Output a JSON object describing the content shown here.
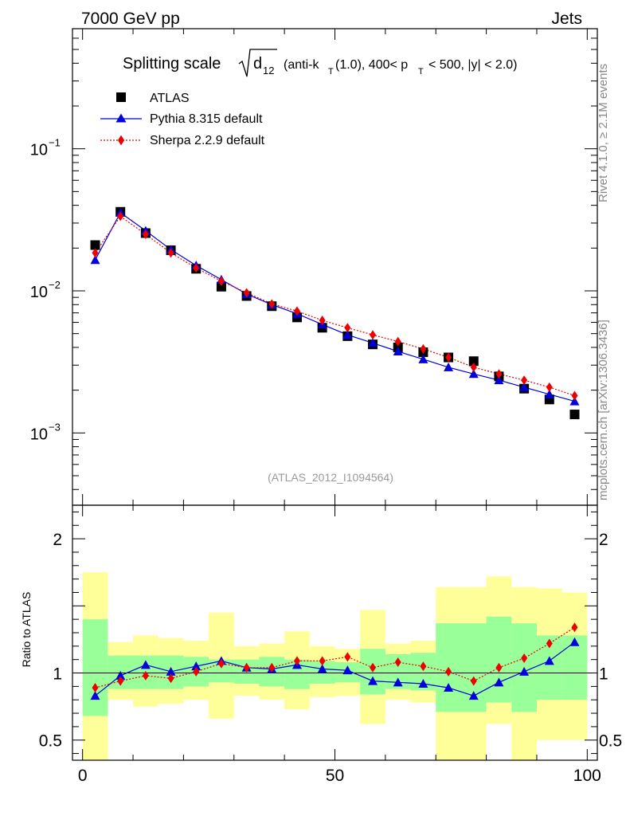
{
  "header": {
    "left": "7000 GeV pp",
    "right": "Jets"
  },
  "side_text": {
    "rivet": "Rivet 4.1.0, ≥ 2.1M events",
    "mcplots": "mcplots.cern.ch [arXiv:1306.3436]"
  },
  "title": {
    "prefix": "Splitting scale",
    "sqrt_arg": "d",
    "sqrt_sub": "12",
    "part1": "(anti-k",
    "sub_t1": "T",
    "part2": "(1.0), 400< p",
    "sub_t2": "T",
    "part3": "< 500, |y| < 2.0)"
  },
  "legend": {
    "atlas": "ATLAS",
    "pythia": "Pythia 8.315 default",
    "sherpa": "Sherpa 2.2.9 default"
  },
  "watermark": "(ATLAS_2012_I1094564)",
  "colors": {
    "data": "#000000",
    "pythia": "#0000dd",
    "sherpa": "#ee0000",
    "band_inner": "#99ff99",
    "band_outer": "#ffff99"
  },
  "chart_data": {
    "type": "line",
    "x": [
      2.5,
      7.5,
      12.5,
      17.5,
      22.5,
      27.5,
      32.5,
      37.5,
      42.5,
      47.5,
      52.5,
      57.5,
      62.5,
      67.5,
      72.5,
      77.5,
      82.5,
      87.5,
      92.5,
      97.5
    ],
    "xlim": [
      -2,
      102
    ],
    "xticks": [
      0,
      50,
      100
    ],
    "main": {
      "yscale": "log",
      "ylim": [
        0.00031,
        0.7
      ],
      "ytick_labels": [
        {
          "value": 0.1,
          "base": "10",
          "exp": "−1"
        },
        {
          "value": 0.01,
          "base": "10",
          "exp": "−2"
        },
        {
          "value": 0.001,
          "base": "10",
          "exp": "−3"
        }
      ],
      "series": [
        {
          "name": "ATLAS",
          "marker": "square",
          "values": [
            0.021,
            0.036,
            0.0255,
            0.0193,
            0.0143,
            0.0107,
            0.0092,
            0.0078,
            0.0065,
            0.0055,
            0.0048,
            0.0042,
            0.004,
            0.0037,
            0.0034,
            0.0032,
            0.0025,
            0.00205,
            0.00172,
            0.00135
          ]
        },
        {
          "name": "Pythia 8.315 default",
          "marker": "triangle",
          "values": [
            0.0165,
            0.0355,
            0.0265,
            0.0195,
            0.0151,
            0.012,
            0.0095,
            0.008,
            0.0069,
            0.0058,
            0.0049,
            0.0043,
            0.00375,
            0.0033,
            0.0029,
            0.0026,
            0.00235,
            0.0021,
            0.00187,
            0.00167
          ]
        },
        {
          "name": "Sherpa 2.2.9 default",
          "marker": "diamond",
          "values": [
            0.0185,
            0.0335,
            0.025,
            0.0185,
            0.0145,
            0.0117,
            0.0097,
            0.0081,
            0.0072,
            0.0062,
            0.0055,
            0.0049,
            0.0044,
            0.0039,
            0.0034,
            0.0029,
            0.0026,
            0.00235,
            0.0021,
            0.00183
          ]
        }
      ]
    },
    "ratio": {
      "ylabel": "Ratio to ATLAS",
      "ylim": [
        0.35,
        2.25
      ],
      "yticks": [
        0.5,
        1,
        2
      ],
      "ytick_labels": [
        "0.5",
        "1",
        "2"
      ],
      "band_inner": {
        "lo": [
          0.68,
          0.88,
          0.88,
          0.88,
          0.9,
          0.93,
          0.92,
          0.9,
          0.88,
          0.92,
          0.93,
          0.84,
          0.88,
          0.87,
          0.71,
          0.71,
          0.78,
          0.71,
          0.8,
          0.8
        ],
        "hi": [
          1.4,
          1.13,
          1.13,
          1.13,
          1.12,
          1.1,
          1.1,
          1.12,
          1.1,
          1.09,
          1.08,
          1.18,
          1.14,
          1.15,
          1.37,
          1.37,
          1.42,
          1.37,
          1.28,
          1.28
        ]
      },
      "band_outer": {
        "lo": [
          0.35,
          0.8,
          0.75,
          0.77,
          0.8,
          0.66,
          0.83,
          0.8,
          0.73,
          0.82,
          0.83,
          0.62,
          0.8,
          0.78,
          0.35,
          0.35,
          0.62,
          0.35,
          0.5,
          0.5
        ],
        "hi": [
          1.75,
          1.23,
          1.28,
          1.26,
          1.24,
          1.45,
          1.2,
          1.22,
          1.31,
          1.2,
          1.18,
          1.47,
          1.22,
          1.24,
          1.64,
          1.64,
          1.72,
          1.64,
          1.63,
          1.6
        ]
      },
      "series": [
        {
          "name": "Pythia 8.315 default",
          "marker": "triangle",
          "values": [
            0.83,
            0.98,
            1.06,
            1.01,
            1.05,
            1.09,
            1.04,
            1.03,
            1.06,
            1.03,
            1.02,
            0.94,
            0.93,
            0.92,
            0.89,
            0.83,
            0.93,
            1.01,
            1.09,
            1.23
          ]
        },
        {
          "name": "Sherpa 2.2.9 default",
          "marker": "diamond",
          "values": [
            0.89,
            0.94,
            0.98,
            0.96,
            1.01,
            1.07,
            1.04,
            1.04,
            1.09,
            1.09,
            1.12,
            1.04,
            1.08,
            1.05,
            1.01,
            0.94,
            1.04,
            1.11,
            1.22,
            1.34
          ]
        }
      ]
    }
  }
}
